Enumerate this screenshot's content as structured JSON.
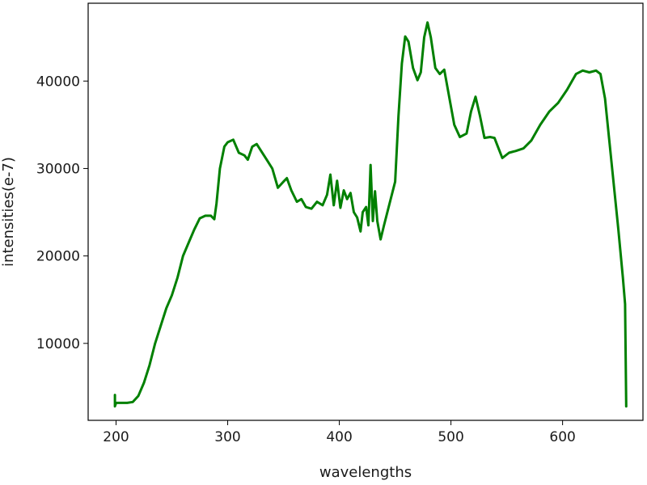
{
  "chart_data": {
    "type": "line",
    "title": "",
    "xlabel": "wavelengths",
    "ylabel": "intensities(e-7)",
    "xlim": [
      175,
      672
    ],
    "ylim": [
      1200,
      48900
    ],
    "xticks": [
      200,
      300,
      400,
      500,
      600
    ],
    "yticks": [
      10000,
      20000,
      30000,
      40000
    ],
    "grid": false,
    "legend": "none",
    "series": [
      {
        "color": "#008000",
        "points": [
          [
            199,
            4100
          ],
          [
            199,
            2800
          ],
          [
            200,
            3200
          ],
          [
            205,
            3200
          ],
          [
            210,
            3200
          ],
          [
            215,
            3300
          ],
          [
            220,
            4000
          ],
          [
            225,
            5500
          ],
          [
            230,
            7500
          ],
          [
            235,
            10000
          ],
          [
            240,
            12000
          ],
          [
            245,
            14000
          ],
          [
            250,
            15500
          ],
          [
            255,
            17500
          ],
          [
            260,
            20000
          ],
          [
            265,
            21500
          ],
          [
            270,
            23000
          ],
          [
            275,
            24300
          ],
          [
            280,
            24600
          ],
          [
            285,
            24600
          ],
          [
            288,
            24200
          ],
          [
            290,
            26000
          ],
          [
            293,
            30000
          ],
          [
            297,
            32500
          ],
          [
            300,
            33000
          ],
          [
            305,
            33300
          ],
          [
            310,
            31800
          ],
          [
            315,
            31500
          ],
          [
            318,
            31000
          ],
          [
            322,
            32500
          ],
          [
            326,
            32800
          ],
          [
            330,
            32000
          ],
          [
            335,
            31000
          ],
          [
            340,
            30000
          ],
          [
            345,
            27800
          ],
          [
            350,
            28500
          ],
          [
            353,
            28900
          ],
          [
            357,
            27500
          ],
          [
            362,
            26200
          ],
          [
            366,
            26500
          ],
          [
            370,
            25600
          ],
          [
            375,
            25400
          ],
          [
            380,
            26200
          ],
          [
            385,
            25800
          ],
          [
            389,
            27000
          ],
          [
            392,
            29300
          ],
          [
            395,
            25800
          ],
          [
            398,
            28600
          ],
          [
            401,
            25500
          ],
          [
            404,
            27500
          ],
          [
            407,
            26500
          ],
          [
            410,
            27200
          ],
          [
            413,
            25000
          ],
          [
            416,
            24400
          ],
          [
            419,
            22800
          ],
          [
            421,
            25000
          ],
          [
            424,
            25600
          ],
          [
            426,
            23500
          ],
          [
            428,
            30400
          ],
          [
            430,
            24000
          ],
          [
            432,
            27400
          ],
          [
            434,
            24000
          ],
          [
            437,
            21900
          ],
          [
            440,
            23500
          ],
          [
            445,
            26000
          ],
          [
            450,
            28500
          ],
          [
            453,
            36000
          ],
          [
            456,
            42000
          ],
          [
            459,
            45100
          ],
          [
            462,
            44500
          ],
          [
            466,
            41500
          ],
          [
            470,
            40100
          ],
          [
            473,
            41000
          ],
          [
            476,
            45000
          ],
          [
            479,
            46700
          ],
          [
            482,
            45000
          ],
          [
            486,
            41500
          ],
          [
            490,
            40800
          ],
          [
            494,
            41300
          ],
          [
            498,
            38500
          ],
          [
            503,
            35000
          ],
          [
            508,
            33600
          ],
          [
            514,
            34000
          ],
          [
            518,
            36500
          ],
          [
            522,
            38200
          ],
          [
            526,
            36000
          ],
          [
            530,
            33500
          ],
          [
            535,
            33600
          ],
          [
            539,
            33500
          ],
          [
            542,
            32500
          ],
          [
            546,
            31200
          ],
          [
            552,
            31800
          ],
          [
            558,
            32000
          ],
          [
            565,
            32300
          ],
          [
            572,
            33200
          ],
          [
            580,
            35000
          ],
          [
            588,
            36500
          ],
          [
            596,
            37500
          ],
          [
            604,
            39000
          ],
          [
            612,
            40800
          ],
          [
            618,
            41200
          ],
          [
            624,
            41000
          ],
          [
            630,
            41200
          ],
          [
            634,
            40800
          ],
          [
            638,
            38000
          ],
          [
            642,
            33000
          ],
          [
            646,
            28000
          ],
          [
            650,
            23000
          ],
          [
            654,
            17500
          ],
          [
            656,
            14500
          ],
          [
            657,
            2800
          ]
        ]
      }
    ]
  }
}
